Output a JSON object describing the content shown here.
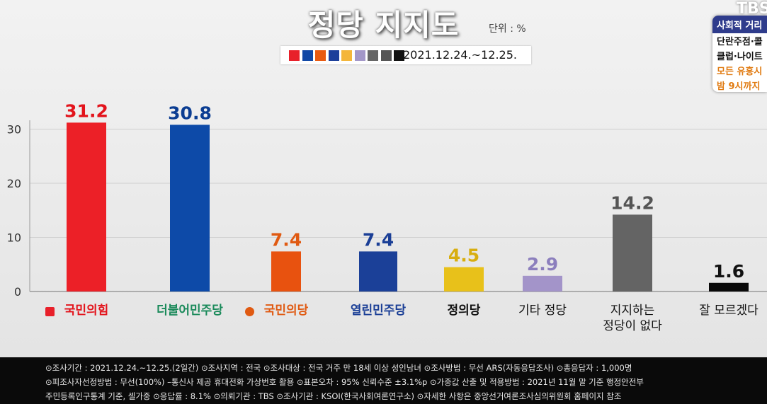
{
  "title": "정당 지지도",
  "unit": "단위 : %",
  "period": "2021.12.24.~12.25.",
  "legend_colors": [
    "#e8202a",
    "#1047a6",
    "#e85a10",
    "#1c3f9a",
    "#f4b63a",
    "#a397c8",
    "#666666",
    "#555555",
    "#111111"
  ],
  "corner_logo": "TBS",
  "badge": {
    "header": "사회적 거리",
    "lines": [
      "단란주점·콜",
      "클럽·나이트",
      "모든 유흥시",
      "밤 9시까지"
    ]
  },
  "chart_data": {
    "type": "bar",
    "categories": [
      "국민의힘",
      "더불어민주당",
      "국민의당",
      "열린민주당",
      "정의당",
      "기타 정당",
      "지지하는 정당이 없다",
      "잘 모르겠다"
    ],
    "category_lines": [
      [
        "국민의힘"
      ],
      [
        "더불어민주당"
      ],
      [
        "국민의당"
      ],
      [
        "열린민주당"
      ],
      [
        "정의당"
      ],
      [
        "기타 정당"
      ],
      [
        "지지하는",
        "정당이 없다"
      ],
      [
        "잘 모르겠다"
      ]
    ],
    "values": [
      31.2,
      30.8,
      7.4,
      7.4,
      4.5,
      2.9,
      14.2,
      1.6
    ],
    "value_labels": [
      "31.2",
      "30.8",
      "7.4",
      "7.4",
      "4.5",
      "2.9",
      "14.2",
      "1.6"
    ],
    "colors": [
      "#ec2027",
      "#0d4aa8",
      "#e8520f",
      "#1b4098",
      "#e8c11a",
      "#a394c9",
      "#646464",
      "#0a0a0a"
    ],
    "label_colors": [
      "#e3141c",
      "#0b3d92",
      "#e05a12",
      "#1b3f96",
      "#d8ae10",
      "#8c7fbd",
      "#555555",
      "#111111"
    ],
    "y_ticks": [
      0,
      10,
      20,
      30
    ],
    "ylim": [
      0,
      35
    ],
    "grid": true
  },
  "footer": {
    "line1": "⊙조사기간 : 2021.12.24.~12.25.(2일간)  ⊙조사지역 : 전국  ⊙조사대상 : 전국 거주 만 18세 이상 성인남녀  ⊙조사방법 : 무선 ARS(자동응답조사)  ⊙총응답자 : 1,000명",
    "line2": "⊙피조사자선정방법 : 무선(100%) –통신사 제공 휴대전화 가상번호 활용  ⊙표본오차 : 95% 신뢰수준 ±3.1%p  ⊙가중값 산출 및 적용방법 : 2021년 11월 말 기준 행정안전부",
    "line3": "주민등록인구통계 기준, 셀가중  ⊙응답률 : 8.1%  ⊙의뢰기관 : TBS  ⊙조사기관 : KSOI(한국사회여론연구소)  ⊙자세한 사항은 중앙선거여론조사심의위원회 홈페이지 참조"
  }
}
